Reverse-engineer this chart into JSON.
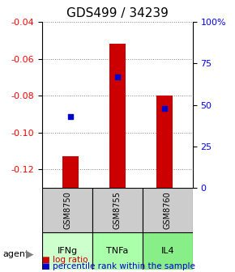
{
  "title": "GDS499 / 34239",
  "samples": [
    "GSM8750",
    "GSM8755",
    "GSM8760"
  ],
  "agents": [
    "IFNg",
    "TNFa",
    "IL4"
  ],
  "log_ratios": [
    -0.113,
    -0.052,
    -0.08
  ],
  "percentile_ranks": [
    43,
    67,
    48
  ],
  "ylim_left": [
    -0.13,
    -0.04
  ],
  "yticks_left": [
    -0.12,
    -0.1,
    -0.08,
    -0.06,
    -0.04
  ],
  "ylim_right": [
    0,
    100
  ],
  "yticks_right": [
    0,
    25,
    50,
    75,
    100
  ],
  "bar_color": "#cc0000",
  "dot_color": "#0000cc",
  "agent_colors": [
    "#ccffcc",
    "#99ff99",
    "#66ee66"
  ],
  "sample_bg_color": "#cccccc",
  "grid_color": "#808080",
  "title_fontsize": 11,
  "tick_fontsize": 8,
  "legend_fontsize": 7.5
}
